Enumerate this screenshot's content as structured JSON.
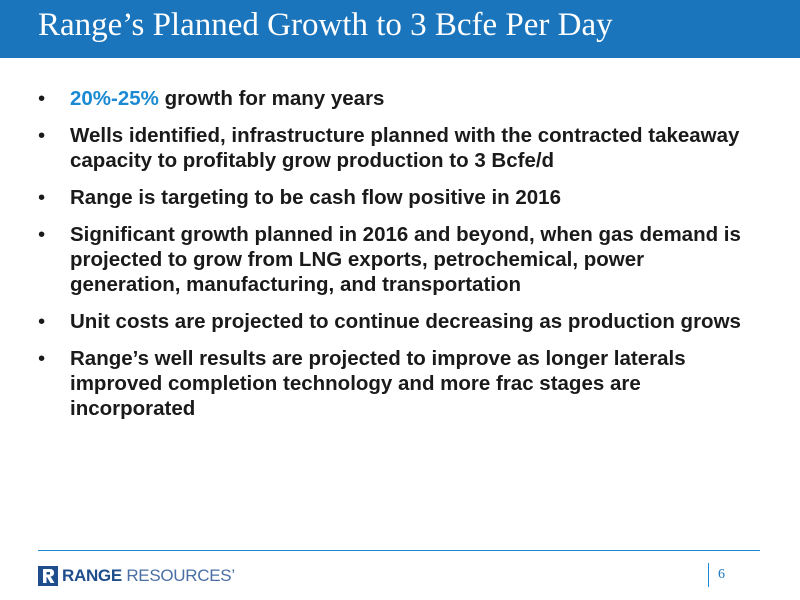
{
  "slide": {
    "title": "Range’s Planned Growth to 3 Bcfe Per Day",
    "page_number": "6"
  },
  "bullets": [
    {
      "highlight": "20%-25%",
      "text": " growth for many years"
    },
    {
      "highlight": "",
      "text": "Wells identified, infrastructure planned with the contracted takeaway capacity to profitably grow production to 3 Bcfe/d"
    },
    {
      "highlight": "",
      "text": "Range is targeting to be cash flow positive in 2016"
    },
    {
      "highlight": "",
      "text": "Significant growth planned in 2016 and beyond, when gas demand is projected to grow from LNG exports, petrochemical, power generation, manufacturing, and transportation"
    },
    {
      "highlight": "",
      "text": "Unit costs are projected to continue decreasing as production grows"
    },
    {
      "highlight": "",
      "text": "Range’s well results are projected to improve as longer laterals improved completion technology and more frac stages are incorporated"
    }
  ],
  "bullet_symbol": "•",
  "footer": {
    "logo_name": "RANGE",
    "logo_suffix": " RESOURCES’",
    "logo_icon": "range-resources-logo-icon"
  },
  "colors": {
    "title_bar": "#1b75bc",
    "accent": "#1b8ad3",
    "text": "#1a1a1a"
  }
}
